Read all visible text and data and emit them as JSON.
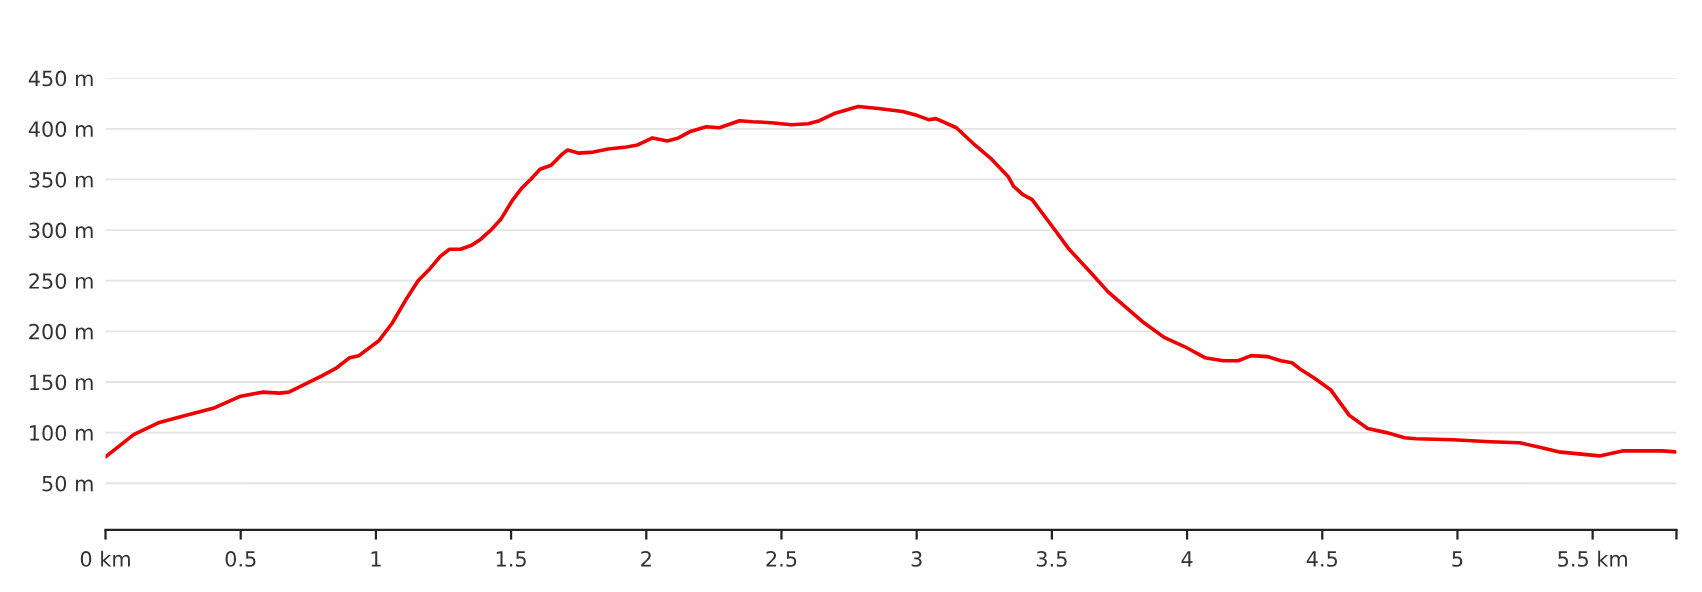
{
  "chart_data": {
    "type": "line",
    "series": [
      {
        "color": "#ee0000",
        "x": [
          0,
          0.104,
          0.199,
          0.295,
          0.398,
          0.5,
          0.582,
          0.643,
          0.678,
          0.8,
          0.855,
          0.903,
          0.937,
          1.012,
          1.06,
          1.115,
          1.156,
          1.197,
          1.238,
          1.272,
          1.313,
          1.354,
          1.388,
          1.429,
          1.463,
          1.504,
          1.538,
          1.572,
          1.607,
          1.648,
          1.689,
          1.709,
          1.749,
          1.804,
          1.859,
          1.927,
          1.968,
          2.023,
          2.078,
          2.119,
          2.16,
          2.222,
          2.27,
          2.345,
          2.393,
          2.462,
          2.537,
          2.599,
          2.64,
          2.695,
          2.784,
          2.859,
          2.948,
          3.003,
          3.044,
          3.071,
          3.147,
          3.215,
          3.277,
          3.338,
          3.359,
          3.393,
          3.427,
          3.503,
          3.564,
          3.64,
          3.708,
          3.755,
          3.833,
          3.915,
          3.99,
          4.066,
          4.134,
          4.189,
          4.237,
          4.299,
          4.347,
          4.388,
          4.422,
          4.47,
          4.532,
          4.6,
          4.668,
          4.737,
          4.805,
          4.847,
          4.984,
          5.121,
          5.23,
          5.312,
          5.374,
          5.449,
          5.525,
          5.614,
          5.696,
          5.758,
          5.805
        ],
        "values": [
          76,
          98,
          110,
          117,
          124,
          136,
          140,
          139,
          140,
          156,
          164,
          174,
          176,
          191,
          208,
          233,
          250,
          261,
          274,
          281,
          281,
          285,
          291,
          301,
          311,
          329,
          341,
          350,
          360,
          364,
          375,
          379,
          376,
          377,
          380,
          382,
          384,
          391,
          388,
          391,
          397,
          402,
          401,
          408,
          407,
          406,
          404,
          405,
          408,
          415,
          422,
          420,
          417,
          413,
          409,
          410,
          401,
          384,
          370,
          353,
          343,
          335,
          330,
          303,
          281,
          259,
          239,
          228,
          210,
          194,
          185,
          174,
          171,
          171,
          176,
          175,
          171,
          169,
          162,
          154,
          142,
          117,
          104,
          100,
          95,
          94,
          93,
          91,
          90,
          85,
          81,
          79,
          77,
          82,
          82,
          82,
          81
        ]
      }
    ],
    "xlim": [
      0,
      5.81
    ],
    "xticks": [
      {
        "value": 0,
        "label": "0 km"
      },
      0.5,
      1,
      1.5,
      2,
      2.5,
      3,
      3.5,
      4,
      4.5,
      5,
      {
        "value": 5.5,
        "label": "5.5 km"
      },
      {
        "value": 5.81,
        "label": null
      }
    ],
    "ylim": [
      4,
      450
    ],
    "yticks": [
      {
        "value": 50,
        "label": "50 m"
      },
      {
        "value": 100,
        "label": "100 m"
      },
      {
        "value": 150,
        "label": "150 m"
      },
      {
        "value": 200,
        "label": "200 m"
      },
      {
        "value": 250,
        "label": "250 m"
      },
      {
        "value": 300,
        "label": "300 m"
      },
      {
        "value": 350,
        "label": "350 m"
      },
      {
        "value": 400,
        "label": "400 m"
      },
      {
        "value": 450,
        "label": "450 m"
      }
    ],
    "grid": "y",
    "legend": false,
    "marker": "none",
    "line_style": "solid"
  }
}
